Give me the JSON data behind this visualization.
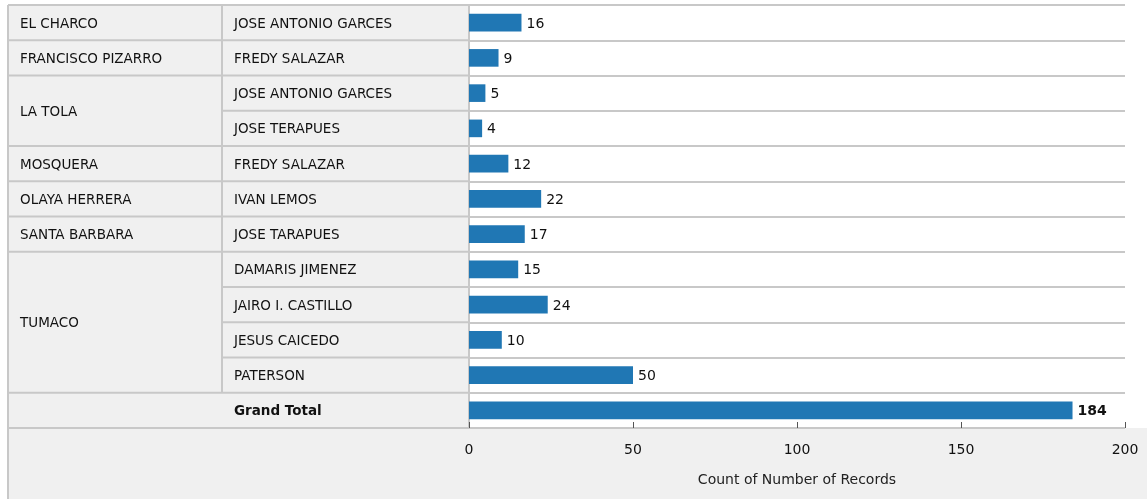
{
  "chart_data": {
    "type": "bar",
    "orientation": "horizontal",
    "categories": [
      "JOSE ANTONIO GARCES",
      "FREDY SALAZAR",
      "JOSE ANTONIO GARCES",
      "JOSE TERAPUES",
      "FREDY SALAZAR",
      "IVAN LEMOS",
      "JOSE TARAPUES",
      "DAMARIS JIMENEZ",
      "JAIRO I. CASTILLO",
      "JESUS CAICEDO",
      "PATERSON",
      "Grand Total"
    ],
    "values": [
      16,
      9,
      5,
      4,
      12,
      22,
      17,
      15,
      24,
      10,
      50,
      184
    ],
    "color": "#2077b4",
    "xlabel": "Count of Number of Records",
    "xlim": [
      0,
      200
    ],
    "xticks": [
      0,
      50,
      100,
      150,
      200
    ],
    "data_labels": true,
    "grid": "y",
    "annotations": [
      "EL CHARCO",
      "FRANCISCO PIZARRO",
      "LA TOLA",
      "MOSQUERA",
      "OLAYA HERRERA",
      "SANTA BARBARA",
      "TUMACO"
    ]
  }
}
